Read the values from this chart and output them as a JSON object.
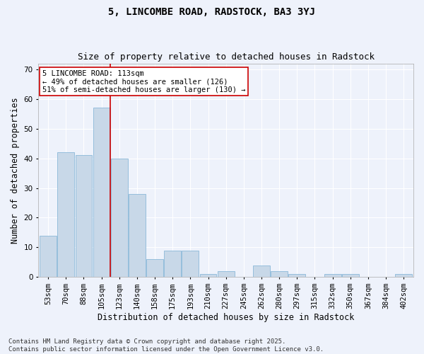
{
  "title": "5, LINCOMBE ROAD, RADSTOCK, BA3 3YJ",
  "subtitle": "Size of property relative to detached houses in Radstock",
  "xlabel": "Distribution of detached houses by size in Radstock",
  "ylabel": "Number of detached properties",
  "categories": [
    "53sqm",
    "70sqm",
    "88sqm",
    "105sqm",
    "123sqm",
    "140sqm",
    "158sqm",
    "175sqm",
    "193sqm",
    "210sqm",
    "227sqm",
    "245sqm",
    "262sqm",
    "280sqm",
    "297sqm",
    "315sqm",
    "332sqm",
    "350sqm",
    "367sqm",
    "384sqm",
    "402sqm"
  ],
  "values": [
    14,
    42,
    41,
    57,
    40,
    28,
    6,
    9,
    9,
    1,
    2,
    0,
    4,
    2,
    1,
    0,
    1,
    1,
    0,
    0,
    1
  ],
  "bar_color": "#c8d8e8",
  "bar_edge_color": "#7bafd4",
  "background_color": "#eef2fb",
  "grid_color": "#ffffff",
  "annotation_line1": "5 LINCOMBE ROAD: 113sqm",
  "annotation_line2": "← 49% of detached houses are smaller (126)",
  "annotation_line3": "51% of semi-detached houses are larger (130) →",
  "annotation_box_color": "#ffffff",
  "annotation_box_edge": "#cc0000",
  "redline_bin": 3,
  "ylim": [
    0,
    72
  ],
  "yticks": [
    0,
    10,
    20,
    30,
    40,
    50,
    60,
    70
  ],
  "footer": "Contains HM Land Registry data © Crown copyright and database right 2025.\nContains public sector information licensed under the Open Government Licence v3.0.",
  "title_fontsize": 10,
  "subtitle_fontsize": 9,
  "xlabel_fontsize": 8.5,
  "ylabel_fontsize": 8.5,
  "tick_fontsize": 7.5,
  "footer_fontsize": 6.5,
  "ann_fontsize": 7.5
}
